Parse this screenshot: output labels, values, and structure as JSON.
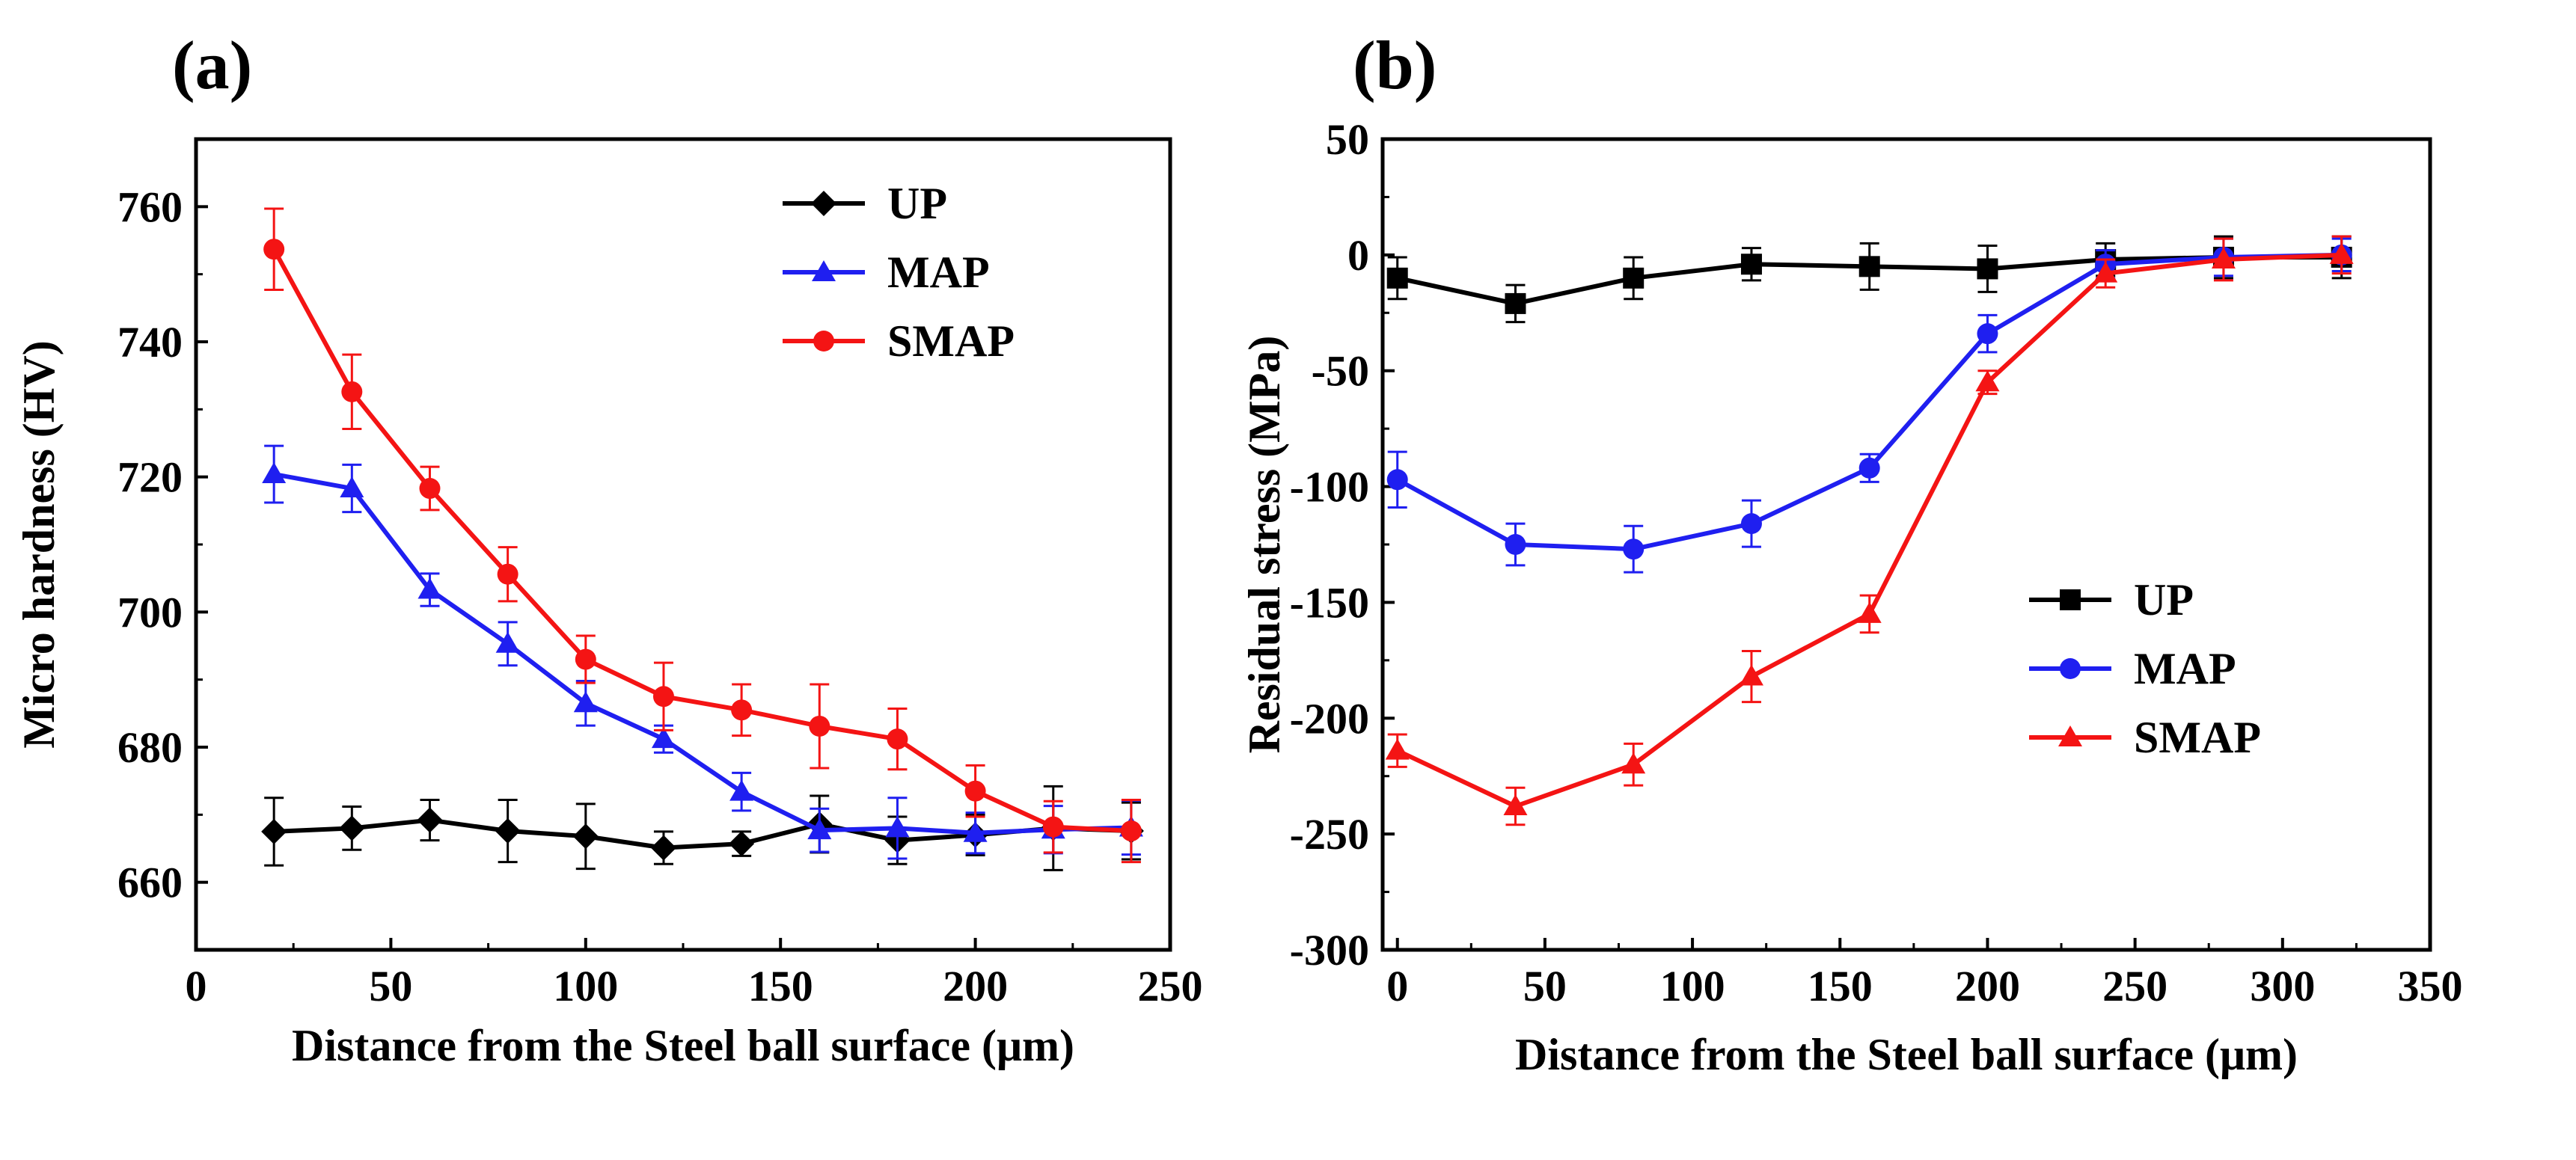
{
  "chart_data": [
    {
      "type": "line",
      "panel_label": "(a)",
      "title": "",
      "xlabel": "Distance from the Steel ball surface (μm)",
      "ylabel": "Micro hardness (HV)",
      "xlim": [
        0,
        250
      ],
      "ylim": [
        650,
        770
      ],
      "xticks": [
        "0",
        "50",
        "100",
        "150",
        "200",
        "250"
      ],
      "yticks": [
        "660",
        "680",
        "700",
        "720",
        "740",
        "760"
      ],
      "grid": false,
      "legend_position": "top-right",
      "x": [
        20,
        40,
        60,
        80,
        100,
        120,
        140,
        160,
        180,
        200,
        220,
        240
      ],
      "series": [
        {
          "name": "UP",
          "marker": "diamond",
          "color": "#000000",
          "values": [
            667.5,
            668,
            669.2,
            667.6,
            666.8,
            665.1,
            665.7,
            668.6,
            666.2,
            667,
            668,
            667.6
          ],
          "errors": [
            5,
            3.2,
            3,
            4.6,
            4.8,
            2.4,
            1.8,
            4.2,
            3.5,
            3,
            6.2,
            4.2
          ]
        },
        {
          "name": "MAP",
          "marker": "triangle",
          "color": "#1f1ff0",
          "values": [
            720.4,
            718.3,
            703.3,
            695.3,
            686.5,
            681.2,
            673.4,
            667.7,
            668,
            667.3,
            667.8,
            668.1
          ],
          "errors": [
            4.2,
            3.5,
            2.4,
            3.2,
            3.3,
            2,
            2.8,
            3.2,
            4.5,
            3,
            3.5,
            4
          ]
        },
        {
          "name": "SMAP",
          "marker": "circle",
          "color": "#f41414",
          "values": [
            753.7,
            732.6,
            718.3,
            705.6,
            693,
            687.5,
            685.5,
            683.1,
            681.2,
            673.5,
            668.2,
            667.6
          ],
          "errors": [
            6,
            5.5,
            3.2,
            4,
            3.5,
            5,
            3.8,
            6.2,
            4.5,
            3.8,
            3.8,
            4.6
          ]
        }
      ]
    },
    {
      "type": "line",
      "panel_label": "(b)",
      "title": "",
      "xlabel": "Distance from the Steel ball surface (μm)",
      "ylabel": "Residual stress (MPa)",
      "xlim": [
        -5,
        350
      ],
      "ylim": [
        -300,
        50
      ],
      "xticks": [
        "0",
        "50",
        "100",
        "150",
        "200",
        "250",
        "300",
        "350"
      ],
      "yticks": [
        "50",
        "0",
        "-50",
        "-100",
        "-150",
        "-200",
        "-250",
        "-300"
      ],
      "grid": false,
      "legend_position": "center-right",
      "x": [
        0,
        40,
        80,
        120,
        160,
        200,
        240,
        280,
        320
      ],
      "series": [
        {
          "name": "UP",
          "marker": "square",
          "color": "#000000",
          "values": [
            -10,
            -21,
            -10,
            -4,
            -5,
            -6,
            -2,
            -1,
            -1
          ],
          "errors": [
            9,
            8,
            9,
            7,
            10,
            10,
            7,
            9,
            9
          ]
        },
        {
          "name": "MAP",
          "marker": "circle",
          "color": "#1f1ff0",
          "values": [
            -97,
            -125,
            -127,
            -116,
            -92,
            -34,
            -4,
            -1,
            0
          ],
          "errors": [
            12,
            9,
            10,
            10,
            6,
            8,
            6,
            8,
            7
          ]
        },
        {
          "name": "SMAP",
          "marker": "triangle",
          "color": "#f41414",
          "values": [
            -214,
            -238,
            -220,
            -182,
            -155,
            -55,
            -8,
            -2,
            0
          ],
          "errors": [
            7,
            8,
            9,
            11,
            8,
            5,
            6,
            9,
            8
          ]
        }
      ]
    }
  ]
}
